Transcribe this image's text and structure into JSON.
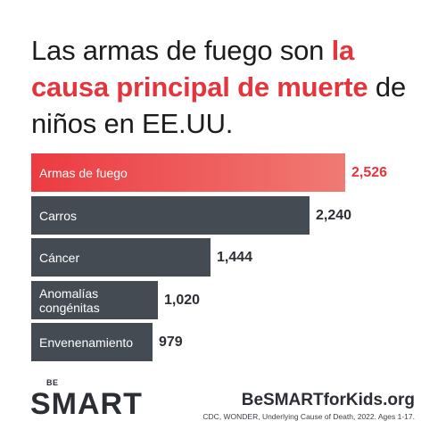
{
  "headline": {
    "part1": "Las armas de fuego son ",
    "accent": "la causa principal de muerte",
    "part2": " de niños en EE.UU."
  },
  "colors": {
    "accent": "#e4343c",
    "bar": "#454b53",
    "text": "#1c1c1c"
  },
  "chart_data": {
    "type": "bar",
    "orientation": "horizontal",
    "categories": [
      "Armas de fuego",
      "Carros",
      "Cáncer",
      "Anomalías\ncongénitas",
      "Envenenamiento"
    ],
    "values": [
      2526,
      2240,
      1444,
      1020,
      979
    ],
    "value_labels": [
      "2,526",
      "2,240",
      "1,444",
      "1,020",
      "979"
    ],
    "highlight_index": 0,
    "xlim": [
      0,
      2526
    ]
  },
  "logo": {
    "be": "BE",
    "smart": "SMART"
  },
  "footer": {
    "site": "BeSMARTforKids.org",
    "source": "CDC, WONDER, Underlying Cause of Death, 2022. Ages 1-17."
  }
}
